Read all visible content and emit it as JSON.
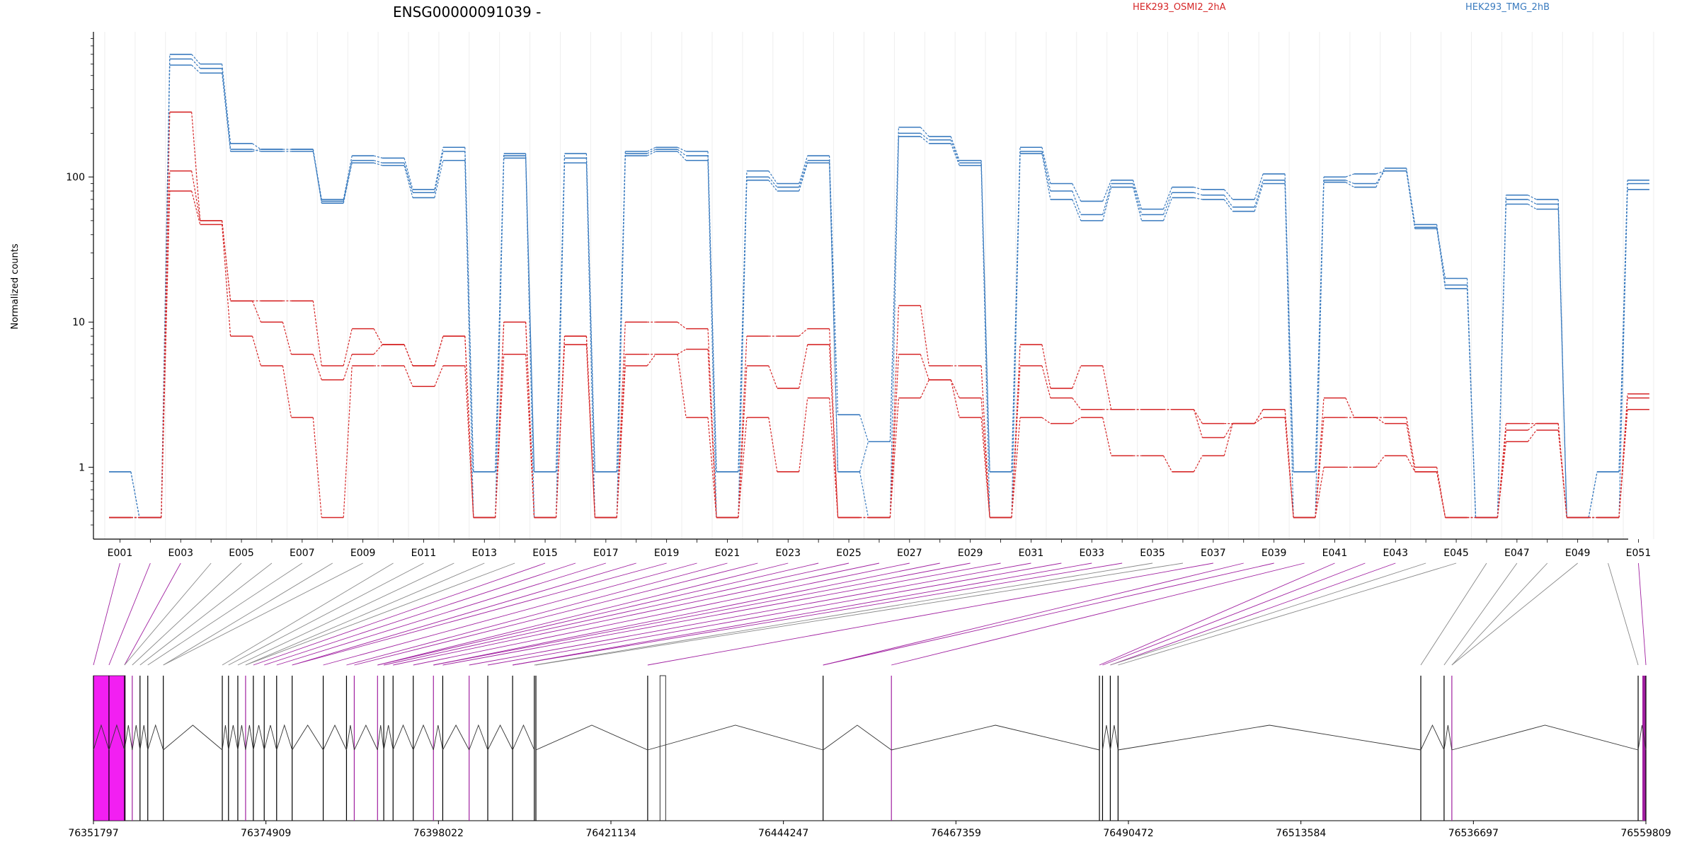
{
  "chart_data": {
    "type": "line",
    "title": "ENSG00000091039 -",
    "ylabel": "Normalized counts",
    "yscale": "log",
    "ylim": [
      0.4,
      1000
    ],
    "y_ticks": [
      1,
      10,
      100
    ],
    "colors": {
      "red": "#d62728",
      "blue": "#3a7bbf",
      "magenta": "#f21ff2",
      "purple": "#a020a0",
      "gray": "#888888"
    },
    "legend": {
      "placement": "top",
      "entries": [
        {
          "label": "HEK293_OSMI2_2hA",
          "color": "#d62728"
        },
        {
          "label": "HEK293_TMG_2hB",
          "color": "#3a7bbf"
        }
      ]
    },
    "x_tick_labels": [
      "E001",
      "E003",
      "E005",
      "E007",
      "E009",
      "E011",
      "E013",
      "E015",
      "E017",
      "E019",
      "E021",
      "E023",
      "E025",
      "E027",
      "E029",
      "E031",
      "E033",
      "E035",
      "E037",
      "E039",
      "E041",
      "E043",
      "E045",
      "E047",
      "E049",
      "E051"
    ],
    "n_bins": 51,
    "series": [
      {
        "name": "HEK293_TMG_2hB",
        "color": "#3a7bbf",
        "values": [
          0.93,
          0.45,
          700,
          600,
          170,
          155,
          155,
          70,
          140,
          135,
          82,
          160,
          0.93,
          145,
          0.93,
          145,
          0.93,
          150,
          160,
          150,
          0.93,
          110,
          90,
          140,
          2.3,
          1.5,
          220,
          190,
          130,
          0.93,
          160,
          90,
          68,
          95,
          60,
          85,
          82,
          70,
          105,
          0.93,
          100,
          105,
          110,
          45,
          20,
          0.45,
          75,
          70,
          0.45,
          0.93,
          95
        ]
      },
      {
        "name": "HEK293_TMG_2hB",
        "color": "#3a7bbf",
        "values": [
          0.93,
          0.45,
          650,
          560,
          155,
          150,
          150,
          68,
          130,
          125,
          78,
          150,
          0.93,
          140,
          0.93,
          135,
          0.93,
          145,
          155,
          140,
          0.93,
          100,
          85,
          130,
          0.93,
          1.5,
          200,
          180,
          125,
          0.93,
          150,
          80,
          55,
          90,
          55,
          78,
          75,
          62,
          95,
          0.93,
          95,
          90,
          110,
          44,
          18,
          0.45,
          70,
          65,
          0.45,
          0.93,
          90
        ]
      },
      {
        "name": "HEK293_TMG_2hB",
        "color": "#3a7bbf",
        "values": [
          0.45,
          0.45,
          590,
          520,
          150,
          155,
          155,
          66,
          125,
          120,
          72,
          130,
          0.45,
          135,
          0.45,
          125,
          0.45,
          140,
          150,
          130,
          0.45,
          95,
          80,
          125,
          0.93,
          0.45,
          190,
          170,
          120,
          0.45,
          145,
          70,
          50,
          85,
          50,
          72,
          70,
          58,
          90,
          0.45,
          92,
          85,
          115,
          47,
          17,
          0.45,
          65,
          60,
          0.45,
          0.45,
          82
        ]
      },
      {
        "name": "HEK293_OSMI2_2hA",
        "color": "#d62728",
        "values": [
          0.45,
          0.45,
          280,
          50,
          14,
          14,
          14,
          5,
          9,
          7,
          5,
          8,
          0.45,
          10,
          0.45,
          8,
          0.45,
          10,
          10,
          9,
          0.45,
          8,
          8,
          9,
          0.45,
          0.45,
          13,
          5,
          5,
          0.45,
          7,
          3.5,
          5,
          2.5,
          2.5,
          2.5,
          2,
          2,
          2.5,
          0.45,
          3,
          2.2,
          2.2,
          1,
          0.45,
          0.45,
          2,
          2,
          0.45,
          0.45,
          3
        ]
      },
      {
        "name": "HEK293_OSMI2_2hA",
        "color": "#d62728",
        "values": [
          0.45,
          0.45,
          110,
          50,
          14,
          10,
          6,
          4,
          6,
          7,
          5,
          8,
          0.45,
          10,
          0.45,
          8,
          0.45,
          6,
          6,
          6.5,
          0.45,
          5,
          3.5,
          7,
          0.45,
          0.45,
          6,
          4,
          3,
          0.45,
          5,
          3,
          2.5,
          2.5,
          2.5,
          2.5,
          1.6,
          2,
          2.5,
          0.45,
          2.2,
          2.2,
          2,
          0.93,
          0.45,
          0.45,
          1.8,
          2,
          0.45,
          0.45,
          3.2
        ]
      },
      {
        "name": "HEK293_OSMI2_2hA",
        "color": "#d62728",
        "values": [
          0.45,
          0.45,
          80,
          47,
          8,
          5,
          2.2,
          0.45,
          5,
          5,
          3.6,
          5,
          0.45,
          6,
          0.45,
          7,
          0.45,
          5,
          6,
          2.2,
          0.45,
          2.2,
          0.93,
          3,
          0.45,
          0.45,
          3,
          4,
          2.2,
          0.45,
          2.2,
          2,
          2.2,
          1.2,
          1.2,
          0.93,
          1.2,
          2,
          2.2,
          0.45,
          1,
          1,
          1.2,
          0.93,
          0.45,
          0.45,
          1.5,
          1.8,
          0.45,
          0.45,
          2.5
        ]
      }
    ],
    "track": {
      "type": "gene_model",
      "axis_labels": [
        "76351797",
        "76374909",
        "76398022",
        "76421134",
        "76444247",
        "76467359",
        "76490472",
        "76513584",
        "76536697",
        "76559809"
      ],
      "genomic_range": [
        76351797,
        76559809
      ]
    }
  }
}
